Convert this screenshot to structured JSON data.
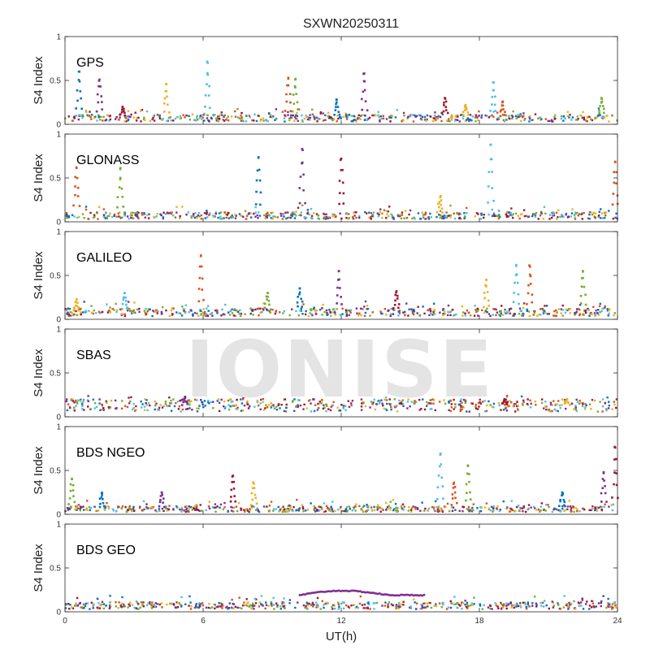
{
  "chart_data": {
    "type": "scatter",
    "title": "SXWN20250311",
    "xlabel": "UT(h)",
    "ylabel": "S4 Index",
    "xlim": [
      0,
      24
    ],
    "ylim": [
      0,
      1
    ],
    "x_ticks": [
      0,
      6,
      12,
      18,
      24
    ],
    "y_ticks": [
      0,
      0.5,
      1
    ],
    "watermark": "IONISE",
    "series_colors": [
      "#0072BD",
      "#D95319",
      "#EDB120",
      "#7E2F8E",
      "#77AC30",
      "#4DBEEE",
      "#A2142F"
    ],
    "panels": [
      {
        "label": "GPS",
        "baseline": 0.07,
        "spikes": [
          {
            "x": 0.6,
            "peak": 0.6
          },
          {
            "x": 1.5,
            "peak": 0.51
          },
          {
            "x": 2.5,
            "peak": 0.2
          },
          {
            "x": 4.4,
            "peak": 0.46
          },
          {
            "x": 6.2,
            "peak": 0.7
          },
          {
            "x": 9.7,
            "peak": 0.52
          },
          {
            "x": 10.0,
            "peak": 0.51
          },
          {
            "x": 11.8,
            "peak": 0.28
          },
          {
            "x": 13.0,
            "peak": 0.58
          },
          {
            "x": 16.5,
            "peak": 0.3
          },
          {
            "x": 17.4,
            "peak": 0.22
          },
          {
            "x": 18.6,
            "peak": 0.48
          },
          {
            "x": 19.0,
            "peak": 0.25
          },
          {
            "x": 23.3,
            "peak": 0.3
          }
        ]
      },
      {
        "label": "GLONASS",
        "baseline": 0.07,
        "spikes": [
          {
            "x": 0.5,
            "peak": 0.62
          },
          {
            "x": 2.4,
            "peak": 0.6
          },
          {
            "x": 8.4,
            "peak": 0.73
          },
          {
            "x": 10.3,
            "peak": 0.83
          },
          {
            "x": 12.0,
            "peak": 0.72
          },
          {
            "x": 16.3,
            "peak": 0.28
          },
          {
            "x": 18.5,
            "peak": 0.88
          },
          {
            "x": 23.9,
            "peak": 0.68
          }
        ]
      },
      {
        "label": "GALILEO",
        "baseline": 0.08,
        "spikes": [
          {
            "x": 0.5,
            "peak": 0.22
          },
          {
            "x": 2.6,
            "peak": 0.3
          },
          {
            "x": 5.9,
            "peak": 0.72
          },
          {
            "x": 8.8,
            "peak": 0.3
          },
          {
            "x": 10.2,
            "peak": 0.35
          },
          {
            "x": 11.9,
            "peak": 0.55
          },
          {
            "x": 14.4,
            "peak": 0.32
          },
          {
            "x": 18.3,
            "peak": 0.45
          },
          {
            "x": 19.6,
            "peak": 0.62
          },
          {
            "x": 20.2,
            "peak": 0.6
          },
          {
            "x": 22.5,
            "peak": 0.55
          }
        ]
      },
      {
        "label": "SBAS",
        "baseline": 0.13,
        "spikes": [
          {
            "x": 5.2,
            "peak": 0.22
          },
          {
            "x": 19.1,
            "peak": 0.2
          },
          {
            "x": 21.8,
            "peak": 0.2
          }
        ]
      },
      {
        "label": "BDS NGEO",
        "baseline": 0.06,
        "spikes": [
          {
            "x": 0.3,
            "peak": 0.4
          },
          {
            "x": 1.6,
            "peak": 0.24
          },
          {
            "x": 4.2,
            "peak": 0.25
          },
          {
            "x": 7.3,
            "peak": 0.44
          },
          {
            "x": 8.2,
            "peak": 0.35
          },
          {
            "x": 16.3,
            "peak": 0.68
          },
          {
            "x": 16.9,
            "peak": 0.36
          },
          {
            "x": 17.5,
            "peak": 0.55
          },
          {
            "x": 21.6,
            "peak": 0.25
          },
          {
            "x": 23.4,
            "peak": 0.48
          },
          {
            "x": 23.9,
            "peak": 0.76
          }
        ]
      },
      {
        "label": "BDS GEO",
        "baseline": 0.07,
        "arc": {
          "x_start": 10.2,
          "x_end": 15.6,
          "y_peak": 0.245,
          "y_end": 0.19
        },
        "spikes": []
      }
    ]
  }
}
